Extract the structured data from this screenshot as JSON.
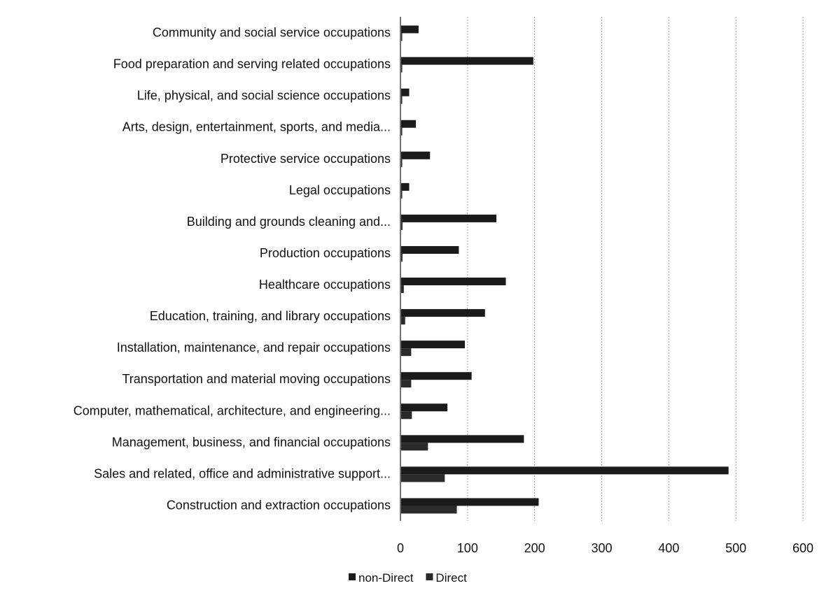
{
  "chart_data": {
    "type": "bar",
    "orientation": "horizontal",
    "categories": [
      "Community and social service occupations",
      "Food preparation and serving related occupations",
      "Life, physical, and social science occupations",
      "Arts, design, entertainment, sports, and media...",
      "Protective service occupations",
      "Legal occupations",
      "Building and grounds cleaning and...",
      "Production occupations",
      "Healthcare occupations",
      "Education, training, and library occupations",
      "Installation, maintenance, and repair occupations",
      "Transportation and material moving occupations",
      "Computer, mathematical, architecture, and engineering...",
      "Management, business, and financial occupations",
      "Sales and related, office and administrative support...",
      "Construction and extraction occupations"
    ],
    "series": [
      {
        "name": "non-Direct",
        "color": "#1a1a1a",
        "values": [
          26,
          197,
          12,
          22,
          43,
          12,
          142,
          86,
          156,
          125,
          95,
          105,
          69,
          183,
          488,
          205
        ]
      },
      {
        "name": "Direct",
        "color": "#2a2a2a",
        "values": [
          1,
          1,
          1,
          1,
          1,
          1,
          2,
          2,
          4,
          6,
          15,
          15,
          16,
          40,
          65,
          83
        ]
      }
    ],
    "xlim": [
      0,
      600
    ],
    "xticks": [
      0,
      100,
      200,
      300,
      400,
      500,
      600
    ],
    "xlabel": "",
    "ylabel": "",
    "title": "",
    "grid": true,
    "legend": "bottom"
  }
}
